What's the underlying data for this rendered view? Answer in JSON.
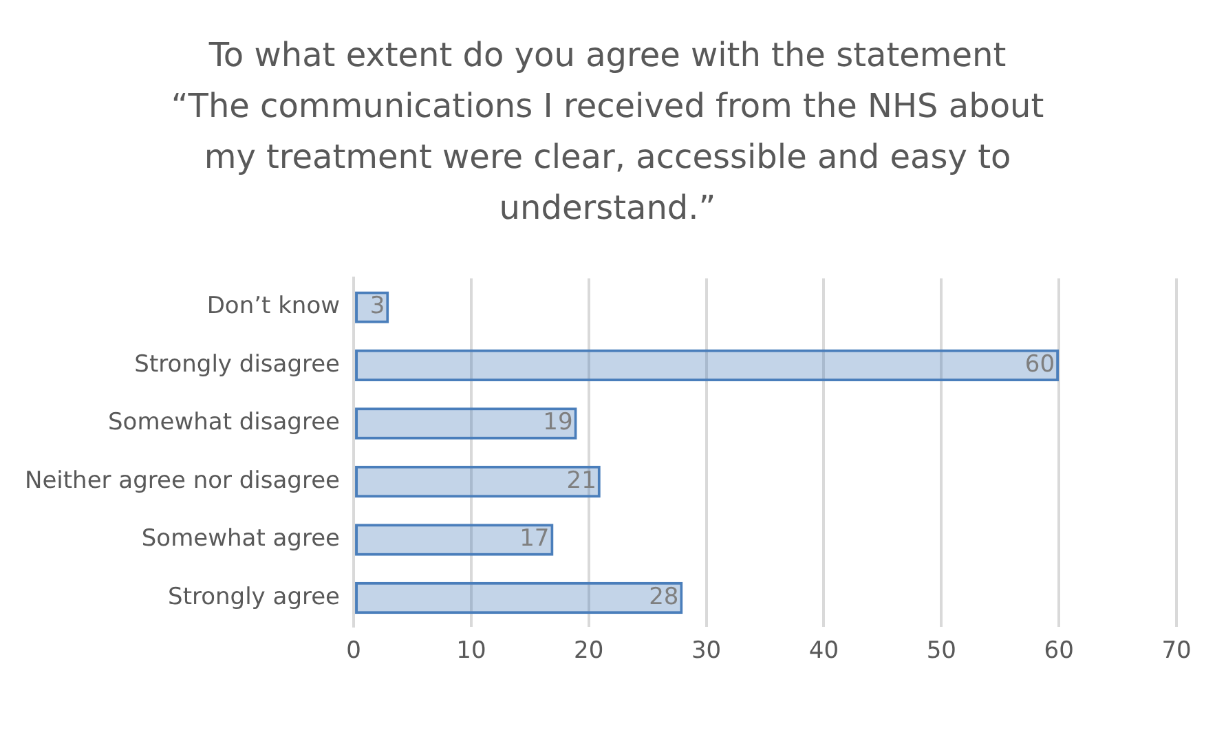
{
  "chart_data": {
    "type": "bar",
    "orientation": "horizontal",
    "title": "To what extent do you agree with the statement “The communications I received from the NHS about my treatment were clear, accessible and easy to understand.”",
    "categories": [
      "Don’t know",
      "Strongly disagree",
      "Somewhat disagree",
      "Neither agree nor disagree",
      "Somewhat agree",
      "Strongly agree"
    ],
    "values": [
      3,
      60,
      19,
      21,
      17,
      28
    ],
    "color": "#4a7ebb",
    "xlim": [
      0,
      70
    ],
    "xticks": [
      0,
      10,
      20,
      30,
      40,
      50,
      60,
      70
    ],
    "grid": "x",
    "data_labels": true
  }
}
